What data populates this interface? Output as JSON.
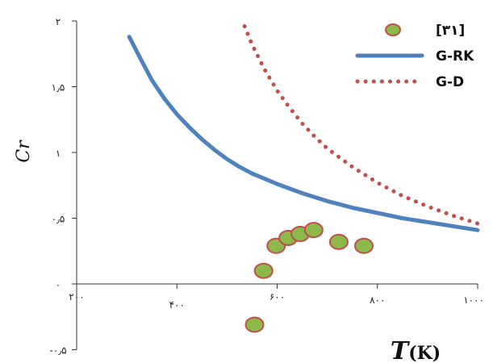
{
  "chart_data": {
    "type": "line",
    "title": "",
    "xlabel": {
      "symbol": "T",
      "unit": "(K)"
    },
    "ylabel": "Cr",
    "xlim": [
      200,
      1000
    ],
    "ylim": [
      -0.5,
      2
    ],
    "x_ticks": [
      {
        "value": 200,
        "label": "۲۰۰"
      },
      {
        "value": 400,
        "label": "۴۰۰"
      },
      {
        "value": 600,
        "label": "۶۰۰"
      },
      {
        "value": 800,
        "label": "۸۰۰"
      },
      {
        "value": 1000,
        "label": "۱۰۰۰"
      }
    ],
    "y_ticks": [
      {
        "value": -0.5,
        "label": "-۰٫۵"
      },
      {
        "value": 0,
        "label": "۰"
      },
      {
        "value": 0.5,
        "label": "۰٫۵"
      },
      {
        "value": 1,
        "label": "۱"
      },
      {
        "value": 1.5,
        "label": "۱٫۵"
      },
      {
        "value": 2,
        "label": "۲"
      }
    ],
    "grid": false,
    "legend_position": "top-right",
    "series": [
      {
        "name": "[۳۱]",
        "kind": "scatter",
        "color": "#8DB84A",
        "edge_color": "#C0504D",
        "points": [
          {
            "x": 555,
            "y": -0.31
          },
          {
            "x": 573,
            "y": 0.1
          },
          {
            "x": 598,
            "y": 0.29
          },
          {
            "x": 622,
            "y": 0.35
          },
          {
            "x": 646,
            "y": 0.38
          },
          {
            "x": 673,
            "y": 0.41
          },
          {
            "x": 723,
            "y": 0.32
          },
          {
            "x": 773,
            "y": 0.29
          }
        ]
      },
      {
        "name": "G-RK",
        "kind": "line",
        "style": "solid",
        "color": "#4F81BD",
        "points": [
          {
            "x": 305,
            "y": 1.88
          },
          {
            "x": 325,
            "y": 1.73
          },
          {
            "x": 350,
            "y": 1.55
          },
          {
            "x": 375,
            "y": 1.41
          },
          {
            "x": 400,
            "y": 1.29
          },
          {
            "x": 425,
            "y": 1.19
          },
          {
            "x": 450,
            "y": 1.1
          },
          {
            "x": 475,
            "y": 1.02
          },
          {
            "x": 500,
            "y": 0.95
          },
          {
            "x": 525,
            "y": 0.89
          },
          {
            "x": 550,
            "y": 0.84
          },
          {
            "x": 575,
            "y": 0.8
          },
          {
            "x": 600,
            "y": 0.76
          },
          {
            "x": 650,
            "y": 0.69
          },
          {
            "x": 700,
            "y": 0.63
          },
          {
            "x": 750,
            "y": 0.58
          },
          {
            "x": 800,
            "y": 0.54
          },
          {
            "x": 850,
            "y": 0.5
          },
          {
            "x": 900,
            "y": 0.47
          },
          {
            "x": 950,
            "y": 0.44
          },
          {
            "x": 1000,
            "y": 0.41
          }
        ]
      },
      {
        "name": "G-D",
        "kind": "line",
        "style": "dotted",
        "color": "#C0504D",
        "points": [
          {
            "x": 535,
            "y": 1.96
          },
          {
            "x": 550,
            "y": 1.82
          },
          {
            "x": 575,
            "y": 1.63
          },
          {
            "x": 600,
            "y": 1.47
          },
          {
            "x": 625,
            "y": 1.34
          },
          {
            "x": 650,
            "y": 1.22
          },
          {
            "x": 675,
            "y": 1.12
          },
          {
            "x": 700,
            "y": 1.03
          },
          {
            "x": 750,
            "y": 0.89
          },
          {
            "x": 800,
            "y": 0.77
          },
          {
            "x": 850,
            "y": 0.67
          },
          {
            "x": 900,
            "y": 0.59
          },
          {
            "x": 950,
            "y": 0.52
          },
          {
            "x": 1000,
            "y": 0.46
          }
        ]
      }
    ]
  }
}
